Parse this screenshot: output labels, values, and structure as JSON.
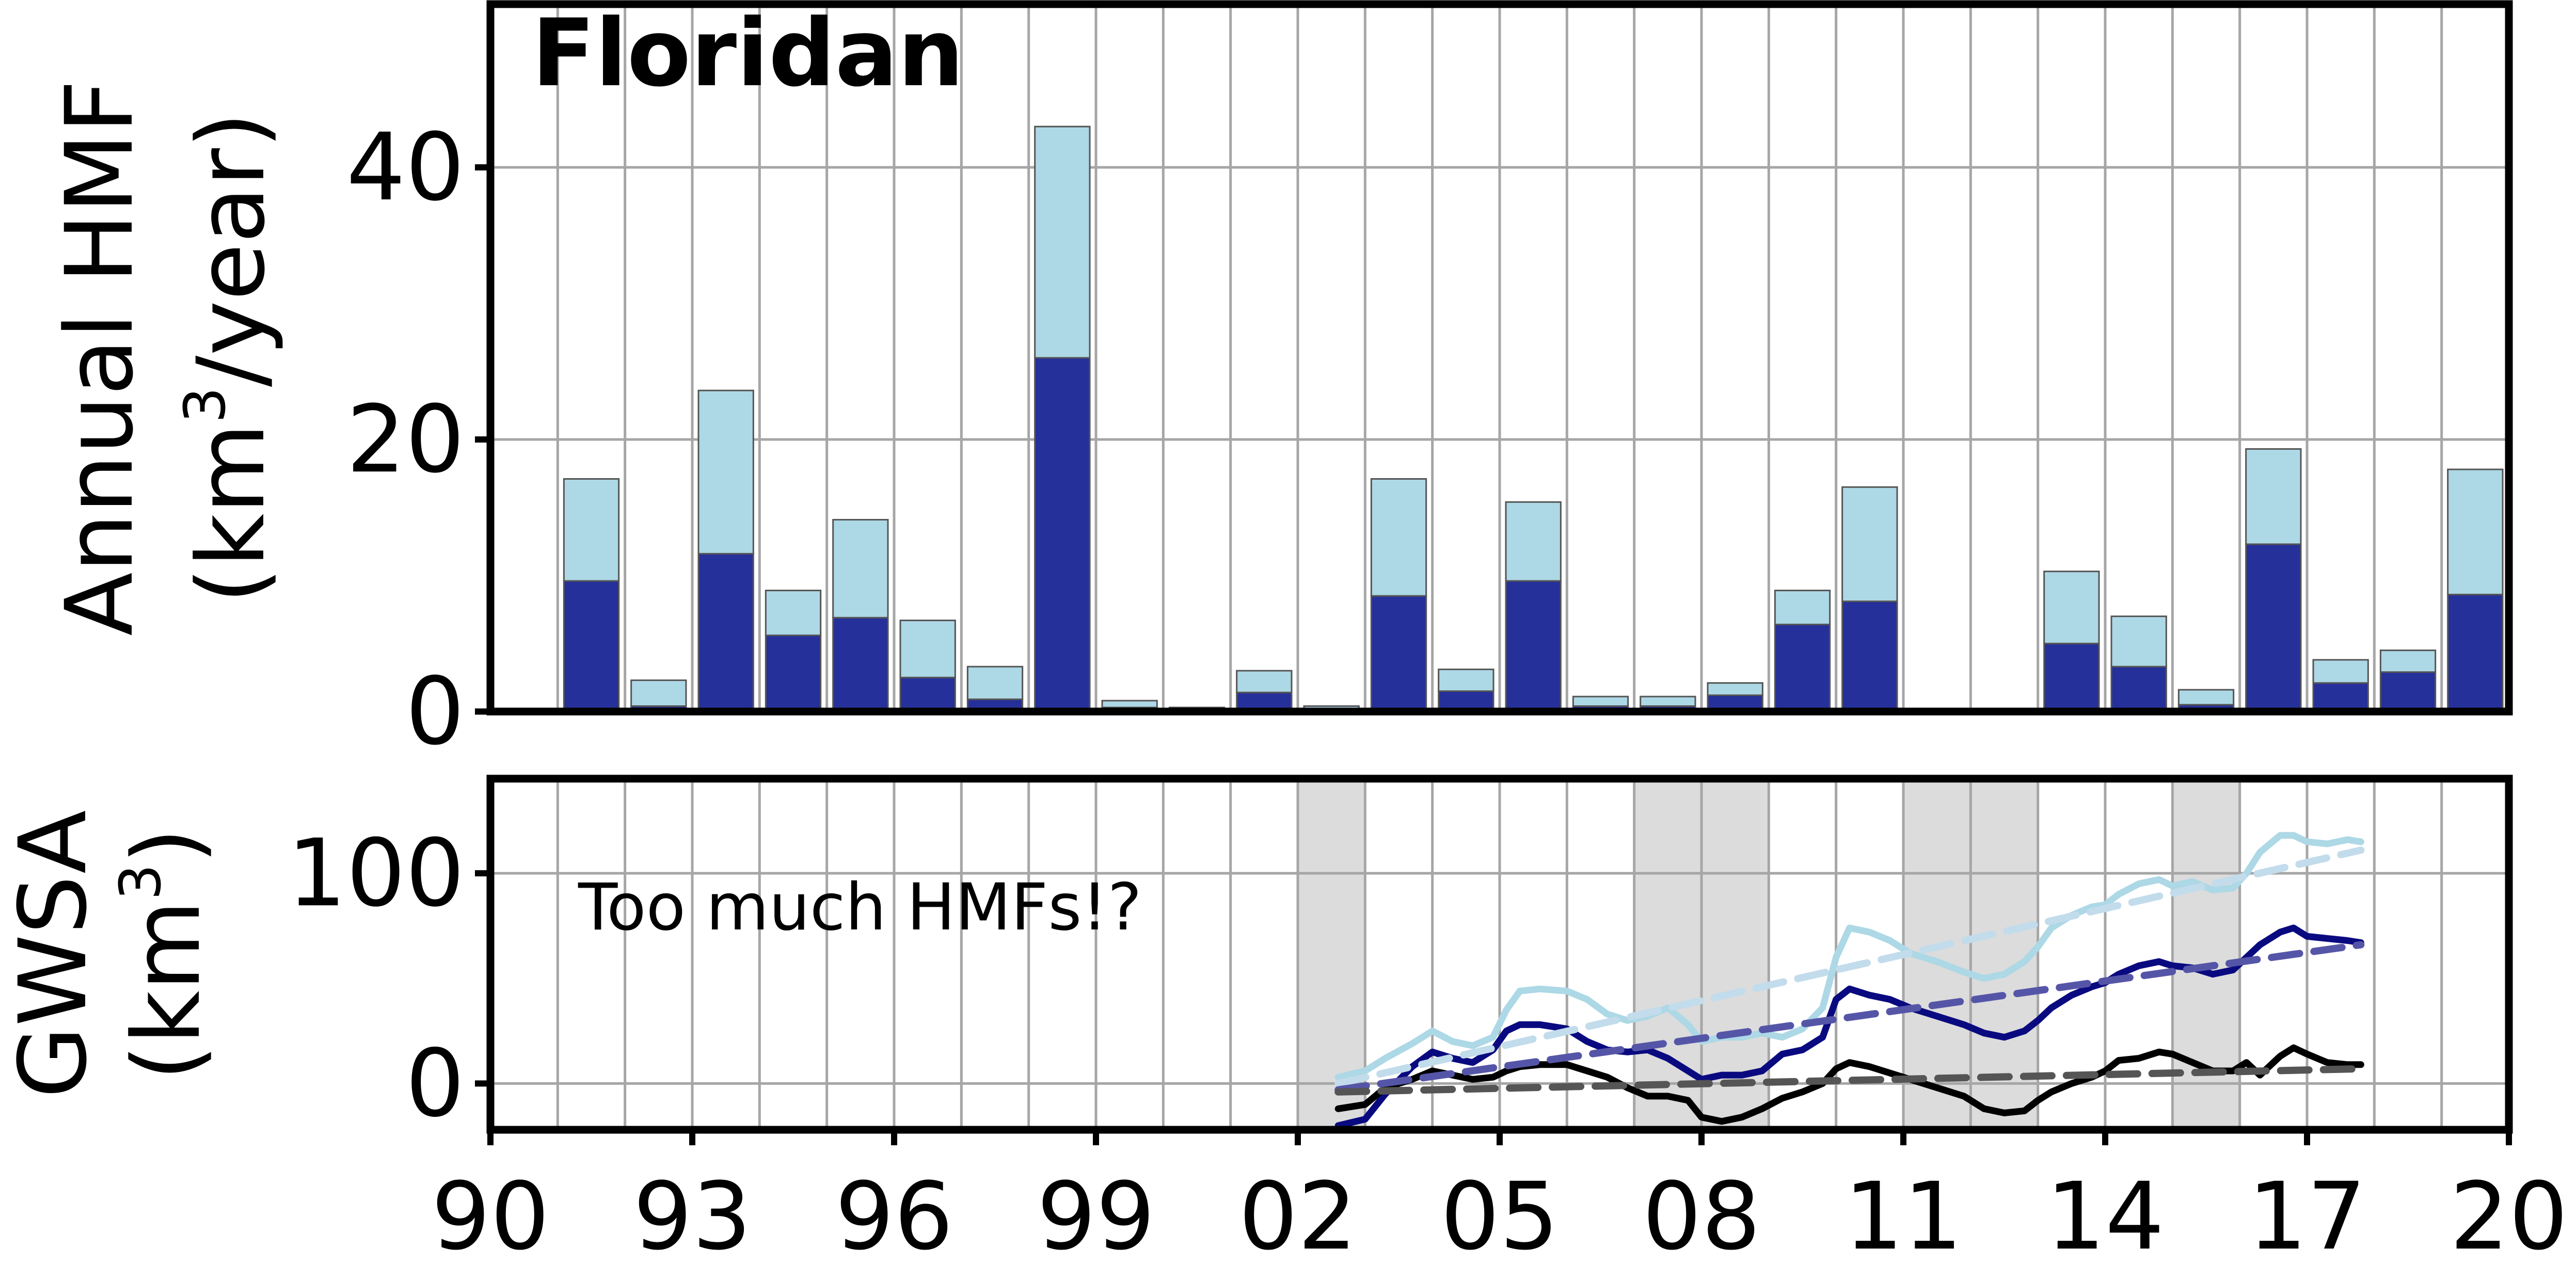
{
  "chart_data": [
    {
      "type": "bar",
      "stacked": true,
      "title": "Floridan",
      "xlabel": "",
      "ylabel_line1": "Annual HMF",
      "ylabel_line2_prefix": "(km",
      "ylabel_line2_sup": "3",
      "ylabel_line2_suffix": "/year)",
      "xlim": [
        1990,
        2020
      ],
      "ylim": [
        0,
        52
      ],
      "yticks": [
        0,
        20,
        40
      ],
      "grid": true,
      "years": [
        1991,
        1992,
        1993,
        1994,
        1995,
        1996,
        1997,
        1998,
        1999,
        2000,
        2001,
        2002,
        2003,
        2004,
        2005,
        2006,
        2007,
        2008,
        2009,
        2010,
        2011,
        2012,
        2013,
        2014,
        2015,
        2016,
        2017,
        2018,
        2019
      ],
      "series": [
        {
          "color": "#26309a",
          "values": [
            9.6,
            0.4,
            11.6,
            5.6,
            6.9,
            2.5,
            0.9,
            26.0,
            0.3,
            0.1,
            1.4,
            0.1,
            8.5,
            1.5,
            9.6,
            0.4,
            0.4,
            1.2,
            6.4,
            8.1,
            0,
            0,
            5.0,
            3.3,
            0.5,
            12.3,
            2.1,
            2.9,
            8.6
          ]
        },
        {
          "color": "#add8e6",
          "values": [
            7.5,
            1.9,
            12.0,
            3.3,
            7.2,
            4.2,
            2.4,
            17.0,
            0.5,
            0.2,
            1.6,
            0.3,
            8.6,
            1.6,
            5.8,
            0.7,
            0.7,
            0.9,
            2.5,
            8.4,
            0,
            0,
            5.3,
            3.7,
            1.1,
            7.0,
            1.7,
            1.6,
            9.2
          ]
        }
      ]
    },
    {
      "type": "line",
      "title": "",
      "xlabel": "",
      "ylabel_line1": "GWSA",
      "ylabel_line2_prefix": "(km",
      "ylabel_line2_sup": "3",
      "ylabel_line2_suffix": ")",
      "xlim": [
        1990,
        2020
      ],
      "ylim": [
        -22,
        145
      ],
      "yticks": [
        0,
        100
      ],
      "xticks": [
        1990,
        1993,
        1996,
        1999,
        2002,
        2005,
        2008,
        2011,
        2014,
        2017,
        2020
      ],
      "xtick_labels": [
        "90",
        "93",
        "96",
        "99",
        "02",
        "05",
        "08",
        "11",
        "14",
        "17",
        "20"
      ],
      "grid": true,
      "annotation": "Too much HMFs!?",
      "shaded_periods": [
        [
          2002.0,
          2003.0
        ],
        [
          2007.0,
          2009.0
        ],
        [
          2011.0,
          2013.0
        ],
        [
          2015.0,
          2016.0
        ]
      ],
      "shade_color": "#dcdcdc",
      "series": [
        {
          "color": "#add8e6",
          "x": [
            2002.6,
            2003.0,
            2003.3,
            2003.7,
            2004.0,
            2004.3,
            2004.6,
            2004.9,
            2005.1,
            2005.3,
            2005.6,
            2006.0,
            2006.3,
            2006.6,
            2006.9,
            2007.2,
            2007.5,
            2007.8,
            2008.0,
            2008.3,
            2008.6,
            2008.9,
            2009.2,
            2009.5,
            2009.8,
            2010.0,
            2010.2,
            2010.5,
            2010.8,
            2011.1,
            2011.5,
            2011.9,
            2012.2,
            2012.5,
            2012.8,
            2013.0,
            2013.2,
            2013.5,
            2013.8,
            2014.0,
            2014.2,
            2014.5,
            2014.8,
            2015.0,
            2015.3,
            2015.6,
            2015.9,
            2016.1,
            2016.3,
            2016.6,
            2016.8,
            2017.0,
            2017.3,
            2017.6,
            2017.8
          ],
          "values": [
            3,
            6,
            12,
            19,
            25,
            20,
            18,
            22,
            35,
            44,
            45,
            44,
            40,
            33,
            30,
            32,
            36,
            28,
            20,
            22,
            22,
            24,
            22,
            26,
            36,
            60,
            74,
            72,
            68,
            62,
            58,
            53,
            50,
            52,
            58,
            65,
            74,
            80,
            84,
            85,
            90,
            95,
            97,
            94,
            96,
            92,
            93,
            100,
            110,
            118,
            118,
            115,
            114,
            116,
            115
          ]
        },
        {
          "color": "#0a0a80",
          "x": [
            2002.6,
            2003.0,
            2003.3,
            2003.7,
            2004.0,
            2004.3,
            2004.6,
            2004.9,
            2005.1,
            2005.3,
            2005.6,
            2006.0,
            2006.3,
            2006.6,
            2006.9,
            2007.2,
            2007.5,
            2007.8,
            2008.0,
            2008.3,
            2008.6,
            2008.9,
            2009.2,
            2009.5,
            2009.8,
            2010.0,
            2010.2,
            2010.5,
            2010.8,
            2011.1,
            2011.5,
            2011.9,
            2012.2,
            2012.5,
            2012.8,
            2013.0,
            2013.2,
            2013.5,
            2013.8,
            2014.0,
            2014.2,
            2014.5,
            2014.8,
            2015.0,
            2015.3,
            2015.6,
            2015.9,
            2016.1,
            2016.3,
            2016.6,
            2016.8,
            2017.0,
            2017.3,
            2017.6,
            2017.8
          ],
          "values": [
            -20,
            -17,
            -5,
            8,
            15,
            12,
            10,
            16,
            25,
            28,
            28,
            26,
            20,
            16,
            15,
            16,
            12,
            6,
            2,
            4,
            4,
            6,
            14,
            16,
            22,
            40,
            45,
            42,
            40,
            36,
            32,
            28,
            24,
            22,
            25,
            30,
            36,
            42,
            46,
            48,
            52,
            56,
            58,
            56,
            55,
            52,
            54,
            60,
            66,
            72,
            74,
            70,
            69,
            68,
            67
          ]
        },
        {
          "color": "#000000",
          "x": [
            2002.6,
            2003.0,
            2003.3,
            2003.7,
            2004.0,
            2004.3,
            2004.6,
            2004.9,
            2005.1,
            2005.3,
            2005.6,
            2006.0,
            2006.3,
            2006.6,
            2006.9,
            2007.2,
            2007.5,
            2007.8,
            2008.0,
            2008.3,
            2008.6,
            2008.9,
            2009.2,
            2009.5,
            2009.8,
            2010.0,
            2010.2,
            2010.5,
            2010.8,
            2011.1,
            2011.5,
            2011.9,
            2012.2,
            2012.5,
            2012.8,
            2013.0,
            2013.2,
            2013.5,
            2013.8,
            2014.0,
            2014.2,
            2014.5,
            2014.8,
            2015.0,
            2015.3,
            2015.6,
            2015.9,
            2016.1,
            2016.3,
            2016.6,
            2016.8,
            2017.0,
            2017.3,
            2017.6,
            2017.8
          ],
          "values": [
            -12,
            -10,
            -2,
            2,
            6,
            4,
            2,
            3,
            6,
            8,
            9,
            9,
            6,
            3,
            -2,
            -6,
            -6,
            -8,
            -16,
            -18,
            -16,
            -12,
            -7,
            -4,
            0,
            7,
            10,
            8,
            5,
            2,
            -2,
            -6,
            -12,
            -14,
            -13,
            -8,
            -4,
            0,
            3,
            6,
            11,
            12,
            15,
            14,
            10,
            6,
            6,
            10,
            4,
            13,
            17,
            14,
            10,
            9,
            9
          ]
        },
        {
          "color": "#c2dcec",
          "dashed": true,
          "x": [
            2002.6,
            2017.8
          ],
          "values": [
            0,
            111
          ]
        },
        {
          "color": "#5555a8",
          "dashed": true,
          "x": [
            2002.6,
            2017.8
          ],
          "values": [
            -3,
            66
          ]
        },
        {
          "color": "#555555",
          "dashed": true,
          "x": [
            2002.6,
            2017.8
          ],
          "values": [
            -4,
            7
          ]
        }
      ]
    }
  ]
}
